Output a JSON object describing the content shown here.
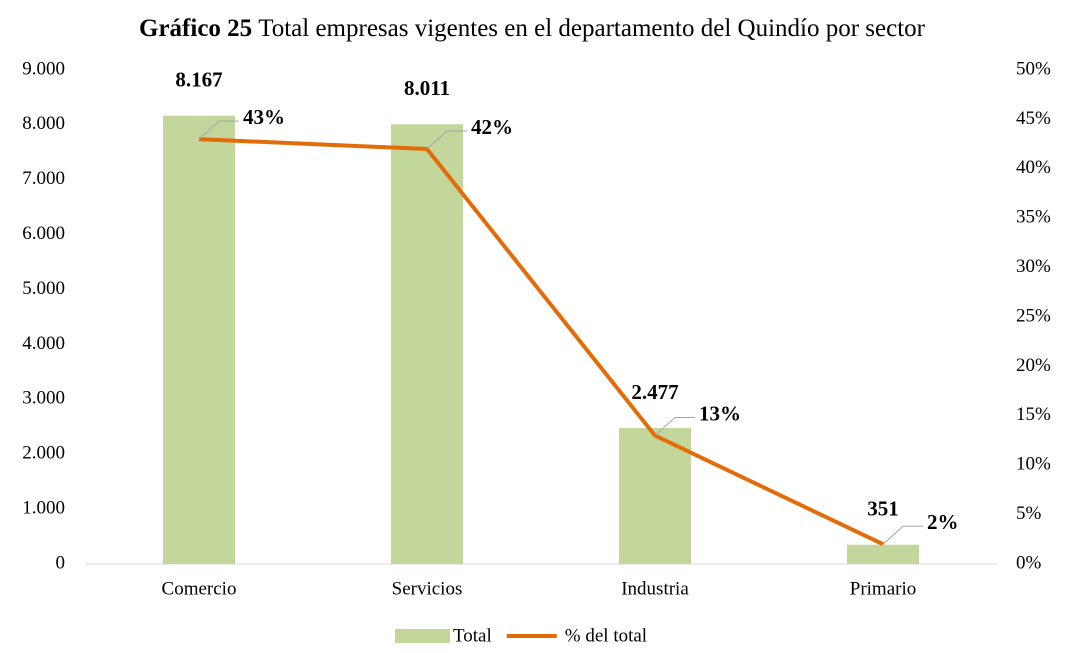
{
  "chart_data": {
    "type": "bar-line",
    "title_label": "Gráfico 25",
    "title": "Total empresas vigentes en el departamento del Quindío por sector",
    "categories": [
      "Comercio",
      "Servicios",
      "Industria",
      "Primario"
    ],
    "series": [
      {
        "name": "Total",
        "type": "bar",
        "color": "#c3d69b",
        "values": [
          8167,
          8011,
          2477,
          351
        ],
        "value_labels": [
          "8.167",
          "8.011",
          "2.477",
          "351"
        ]
      },
      {
        "name": "% del total",
        "type": "line",
        "axis": "y2",
        "color": "#e36c09",
        "values": [
          43,
          42,
          13,
          2
        ],
        "value_labels": [
          "43%",
          "42%",
          "13%",
          "2%"
        ]
      }
    ],
    "ylim": [
      0,
      9000
    ],
    "yticks": [
      0,
      {
        "value": 1000,
        "label": "1.000"
      },
      {
        "value": 2000,
        "label": "2.000"
      },
      {
        "value": 3000,
        "label": "3.000"
      },
      {
        "value": 4000,
        "label": "4.000"
      },
      {
        "value": 5000,
        "label": "5.000"
      },
      {
        "value": 6000,
        "label": "6.000"
      },
      {
        "value": 7000,
        "label": "7.000"
      },
      {
        "value": 8000,
        "label": "8.000"
      },
      {
        "value": 9000,
        "label": "9.000"
      }
    ],
    "y2lim": [
      0,
      50
    ],
    "y2ticks": [
      {
        "value": 0,
        "label": "0%"
      },
      {
        "value": 5,
        "label": "5%"
      },
      {
        "value": 10,
        "label": "10%"
      },
      {
        "value": 15,
        "label": "15%"
      },
      {
        "value": 20,
        "label": "20%"
      },
      {
        "value": 25,
        "label": "25%"
      },
      {
        "value": 30,
        "label": "30%"
      },
      {
        "value": 35,
        "label": "35%"
      },
      {
        "value": 40,
        "label": "40%"
      },
      {
        "value": 45,
        "label": "45%"
      },
      {
        "value": 50,
        "label": "50%"
      }
    ],
    "legend": "bottom"
  }
}
